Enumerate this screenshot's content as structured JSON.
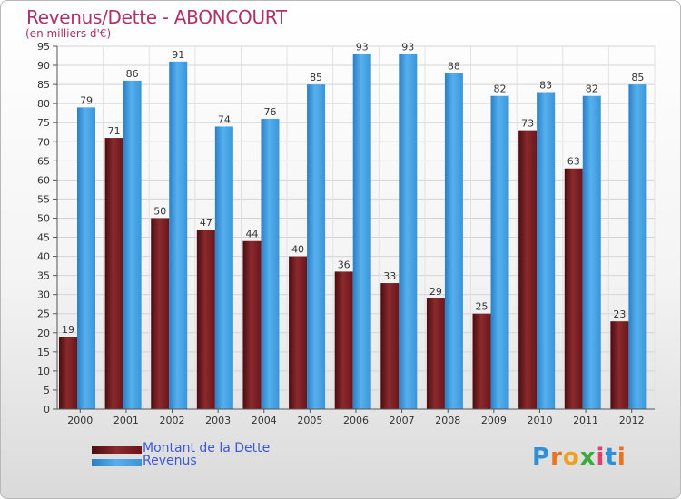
{
  "chart_data": {
    "type": "bar",
    "title": "Revenus/Dette - ABONCOURT",
    "subtitle": "(en milliers d'€)",
    "categories": [
      "2000",
      "2001",
      "2002",
      "2003",
      "2004",
      "2005",
      "2006",
      "2007",
      "2008",
      "2009",
      "2010",
      "2011",
      "2012"
    ],
    "series": [
      {
        "name": "Montant de la Dette",
        "values": [
          19,
          71,
          50,
          47,
          44,
          40,
          36,
          33,
          29,
          25,
          73,
          63,
          23
        ],
        "color": "#7a1f24"
      },
      {
        "name": "Revenus",
        "values": [
          79,
          86,
          91,
          74,
          76,
          85,
          93,
          93,
          88,
          82,
          83,
          82,
          85
        ],
        "color": "#3f9ee0"
      }
    ],
    "ylim": [
      0,
      95
    ],
    "ytick_step": 5,
    "grid": true,
    "legend": "bottom-left"
  },
  "logo_text": "Proxiti"
}
